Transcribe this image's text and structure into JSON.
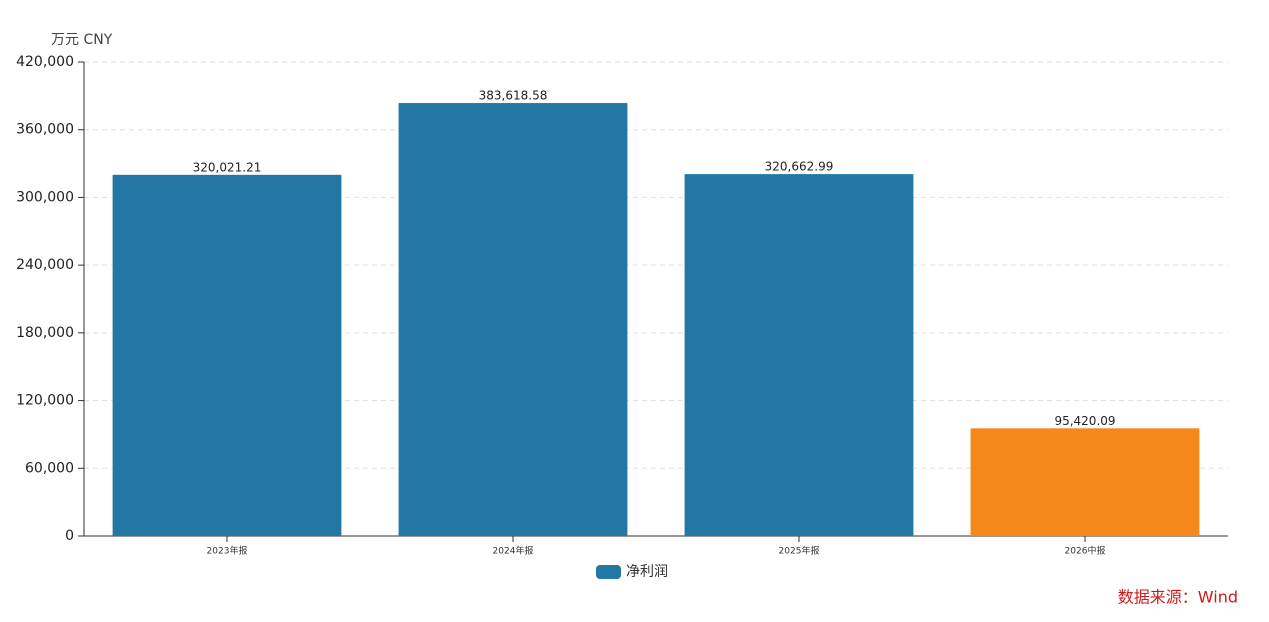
{
  "chart_data": {
    "type": "bar",
    "unit_label": "万元  CNY",
    "source": "数据来源：Wind",
    "categories": [
      "2023年报",
      "2024年报",
      "2025年报",
      "2026中报"
    ],
    "series": [
      {
        "name": "净利润",
        "color": "#2277a4",
        "values": [
          320021.21,
          383618.58,
          320662.99,
          95420.09
        ],
        "value_labels": [
          "320,021.21",
          "383,618.58",
          "320,662.99",
          "95,420.09"
        ],
        "colors": [
          "#2277a4",
          "#2277a4",
          "#2277a4",
          "#f5881a"
        ]
      }
    ],
    "ylim": [
      0,
      420000
    ],
    "yticks": [
      0,
      {
        "value": 60000,
        "label": "60,000"
      },
      {
        "value": 120000,
        "label": "120,000"
      },
      {
        "value": 180000,
        "label": "180,000"
      },
      {
        "value": 240000,
        "label": "240,000"
      },
      {
        "value": 300000,
        "label": "300,000"
      },
      {
        "value": 360000,
        "label": "360,000"
      },
      {
        "value": 420000,
        "label": "420,000"
      }
    ],
    "grid": true
  }
}
